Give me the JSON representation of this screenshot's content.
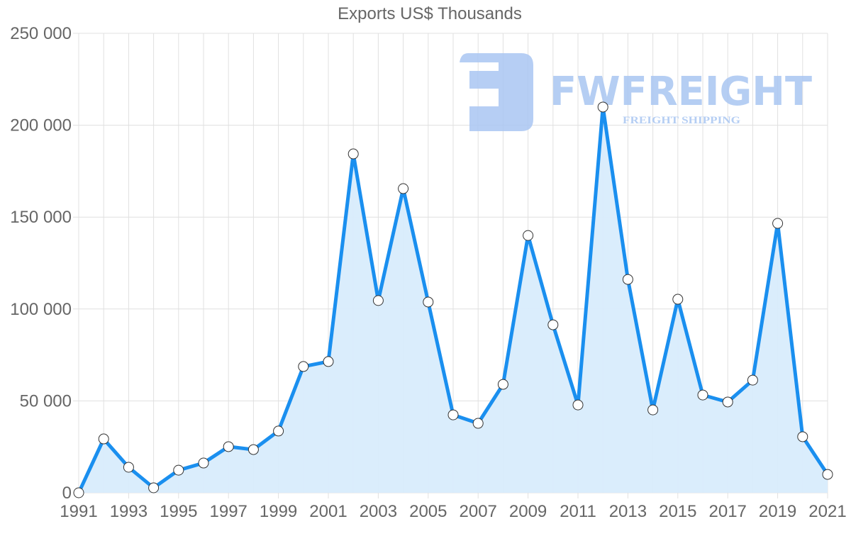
{
  "chart_data": {
    "type": "line",
    "title": "Exports US$ Thousands",
    "xlabel": "",
    "ylabel": "",
    "ylim": [
      0,
      250000
    ],
    "yticks": [
      0,
      50000,
      100000,
      150000,
      200000,
      250000
    ],
    "ytick_labels": [
      "0",
      "50 000",
      "100 000",
      "150 000",
      "200 000",
      "250 000"
    ],
    "xtick_labels": [
      "1991",
      "1993",
      "1995",
      "1997",
      "1999",
      "2001",
      "2003",
      "2005",
      "2007",
      "2009",
      "2011",
      "2013",
      "2015",
      "2017",
      "2019",
      "2021"
    ],
    "grid": true,
    "legend": null,
    "filled": true,
    "x": [
      1991,
      1992,
      1993,
      1994,
      1995,
      1996,
      1997,
      1998,
      1999,
      2000,
      2001,
      2002,
      2003,
      2004,
      2005,
      2006,
      2007,
      2008,
      2009,
      2010,
      2011,
      2012,
      2013,
      2014,
      2015,
      2016,
      2017,
      2018,
      2019,
      2020,
      2021
    ],
    "series": [
      {
        "name": "Exports",
        "values": [
          0,
          29300,
          13900,
          2700,
          12300,
          16200,
          25100,
          23500,
          33600,
          68700,
          71400,
          184400,
          104600,
          165500,
          103800,
          42400,
          37800,
          59000,
          140000,
          91400,
          47800,
          209900,
          116100,
          45100,
          105300,
          53200,
          49400,
          61300,
          146600,
          30500,
          10000
        ]
      }
    ]
  },
  "colors": {
    "line": "#1a8fef",
    "fill": "#d8ecfc",
    "marker_fill": "#ffffff",
    "marker_stroke": "#333333",
    "logo": "#a9c6f2"
  },
  "watermark": {
    "brand": "FWFREIGHT",
    "tagline": "FREIGHT SHIPPING"
  }
}
